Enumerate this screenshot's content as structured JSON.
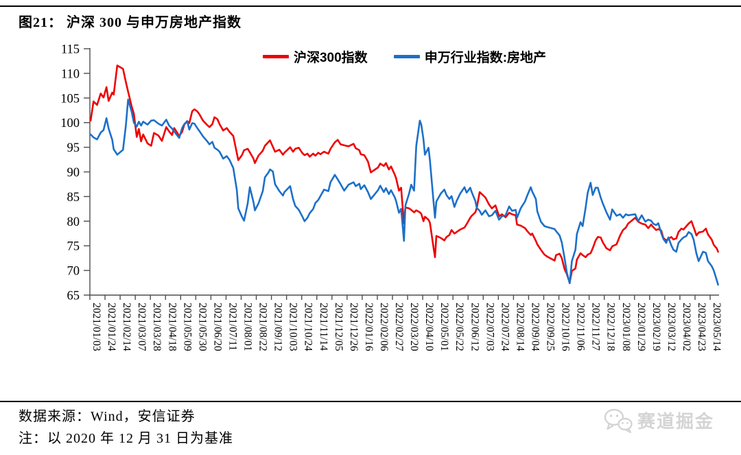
{
  "page": {
    "title": "图21： 沪深 300 与申万房地产指数"
  },
  "legend": [
    {
      "label": "沪深300指数",
      "color": "#ee0000"
    },
    {
      "label": "申万行业指数:房地产",
      "color": "#1c70c8"
    }
  ],
  "footer": {
    "source": "数据来源：Wind，安信证券",
    "note": "注：以 2020 年 12 月 31 日为基准"
  },
  "watermark": {
    "text": "赛道掘金",
    "icon": "wechat-chat-bubbles",
    "color": "#d4d4d4"
  },
  "chart_data": {
    "type": "line",
    "title": "图21： 沪深 300 与申万房地产指数",
    "xlabel": "",
    "ylabel": "",
    "ylim": [
      65,
      115
    ],
    "y_ticks": [
      115,
      110,
      105,
      100,
      95,
      90,
      85,
      80,
      75,
      70,
      65
    ],
    "grid": false,
    "legend_position": "top-center",
    "axis_color": "#4d4d4d",
    "x_start": "2021/01/03",
    "x_tick_labels": [
      "2021/01/03",
      "2021/01/24",
      "2021/02/14",
      "2021/03/07",
      "2021/03/28",
      "2021/04/18",
      "2021/05/09",
      "2021/05/30",
      "2021/06/20",
      "2021/07/11",
      "2021/08/01",
      "2021/08/22",
      "2021/09/12",
      "2021/10/03",
      "2021/10/24",
      "2021/11/14",
      "2021/12/05",
      "2021/12/26",
      "2022/01/16",
      "2022/02/06",
      "2022/02/27",
      "2022/03/20",
      "2022/04/10",
      "2022/05/01",
      "2022/05/22",
      "2022/06/12",
      "2022/07/03",
      "2022/07/24",
      "2022/08/14",
      "2022/09/04",
      "2022/09/25",
      "2022/10/16",
      "2022/11/06",
      "2022/11/27",
      "2022/12/18",
      "2023/01/08",
      "2023/01/29",
      "2023/02/19",
      "2023/03/12",
      "2023/04/02",
      "2023/04/23",
      "2023/05/14"
    ],
    "dates": [
      "2021/01/04",
      "2021/01/08",
      "2021/01/13",
      "2021/01/18",
      "2021/01/22",
      "2021/01/26",
      "2021/01/29",
      "2021/02/03",
      "2021/02/05",
      "2021/02/10",
      "2021/02/18",
      "2021/02/22",
      "2021/02/25",
      "2021/03/02",
      "2021/03/05",
      "2021/03/09",
      "2021/03/12",
      "2021/03/15",
      "2021/03/18",
      "2021/03/24",
      "2021/03/29",
      "2021/04/02",
      "2021/04/08",
      "2021/04/13",
      "2021/04/19",
      "2021/04/23",
      "2021/04/27",
      "2021/04/30",
      "2021/05/07",
      "2021/05/11",
      "2021/05/14",
      "2021/05/18",
      "2021/05/21",
      "2021/05/25",
      "2021/05/28",
      "2021/06/01",
      "2021/06/04",
      "2021/06/09",
      "2021/06/15",
      "2021/06/18",
      "2021/06/22",
      "2021/06/25",
      "2021/06/29",
      "2021/07/02",
      "2021/07/07",
      "2021/07/12",
      "2021/07/16",
      "2021/07/21",
      "2021/07/26",
      "2021/07/28",
      "2021/08/02",
      "2021/08/05",
      "2021/08/10",
      "2021/08/13",
      "2021/08/18",
      "2021/08/20",
      "2021/08/25",
      "2021/08/31",
      "2021/09/03",
      "2021/09/08",
      "2021/09/10",
      "2021/09/14",
      "2021/09/17",
      "2021/09/23",
      "2021/09/28",
      "2021/09/30",
      "2021/10/08",
      "2021/10/12",
      "2021/10/15",
      "2021/10/20",
      "2021/10/25",
      "2021/10/28",
      "2021/11/01",
      "2021/11/04",
      "2021/11/09",
      "2021/11/12",
      "2021/11/16",
      "2021/11/19",
      "2021/11/24",
      "2021/11/30",
      "2021/12/03",
      "2021/12/09",
      "2021/12/13",
      "2021/12/17",
      "2021/12/22",
      "2021/12/28",
      "2022/01/04",
      "2022/01/07",
      "2022/01/12",
      "2022/01/14",
      "2022/01/19",
      "2022/01/24",
      "2022/01/28",
      "2022/02/07",
      "2022/02/10",
      "2022/02/15",
      "2022/02/18",
      "2022/02/22",
      "2022/02/25",
      "2022/03/02",
      "2022/03/04",
      "2022/03/08",
      "2022/03/11",
      "2022/03/15",
      "2022/03/17",
      "2022/03/22",
      "2022/03/25",
      "2022/03/29",
      "2022/04/01",
      "2022/04/06",
      "2022/04/08",
      "2022/04/11",
      "2022/04/13",
      "2022/04/18",
      "2022/04/20",
      "2022/04/25",
      "2022/04/27",
      "2022/04/29",
      "2022/05/05",
      "2022/05/10",
      "2022/05/13",
      "2022/05/17",
      "2022/05/20",
      "2022/05/24",
      "2022/05/27",
      "2022/06/01",
      "2022/06/07",
      "2022/06/10",
      "2022/06/15",
      "2022/06/17",
      "2022/06/22",
      "2022/06/24",
      "2022/06/28",
      "2022/07/01",
      "2022/07/06",
      "2022/07/11",
      "2022/07/15",
      "2022/07/20",
      "2022/07/25",
      "2022/07/29",
      "2022/08/03",
      "2022/08/08",
      "2022/08/12",
      "2022/08/17",
      "2022/08/19",
      "2022/08/24",
      "2022/08/30",
      "2022/09/02",
      "2022/09/07",
      "2022/09/09",
      "2022/09/14",
      "2022/09/16",
      "2022/09/21",
      "2022/09/26",
      "2022/09/30",
      "2022/10/10",
      "2022/10/12",
      "2022/10/17",
      "2022/10/20",
      "2022/10/24",
      "2022/10/27",
      "2022/10/31",
      "2022/11/03",
      "2022/11/08",
      "2022/11/10",
      "2022/11/15",
      "2022/11/18",
      "2022/11/22",
      "2022/11/25",
      "2022/11/29",
      "2022/12/02",
      "2022/12/06",
      "2022/12/09",
      "2022/12/13",
      "2022/12/16",
      "2022/12/21",
      "2022/12/26",
      "2022/12/29",
      "2023/01/04",
      "2023/01/09",
      "2023/01/13",
      "2023/01/17",
      "2023/01/20",
      "2023/01/30",
      "2023/02/03",
      "2023/02/08",
      "2023/02/13",
      "2023/02/17",
      "2023/02/21",
      "2023/02/24",
      "2023/02/28",
      "2023/03/03",
      "2023/03/07",
      "2023/03/10",
      "2023/03/14",
      "2023/03/17",
      "2023/03/21",
      "2023/03/24",
      "2023/03/28",
      "2023/03/31",
      "2023/04/04",
      "2023/04/07",
      "2023/04/11",
      "2023/04/14",
      "2023/04/18",
      "2023/04/21",
      "2023/04/25",
      "2023/04/28",
      "2023/05/04",
      "2023/05/08",
      "2023/05/11",
      "2023/05/16",
      "2023/05/19",
      "2023/05/23",
      "2023/05/25"
    ],
    "series": [
      {
        "name": "沪深300指数",
        "color": "#ee0000",
        "values": [
          100.4,
          104.3,
          103.6,
          105.9,
          105.1,
          107.2,
          104.4,
          106.1,
          105.7,
          111.6,
          110.9,
          108.2,
          106.3,
          103.3,
          101.8,
          97.1,
          98.7,
          96.2,
          97.6,
          95.8,
          95.3,
          97.9,
          97.4,
          96.3,
          99.1,
          98.2,
          97.5,
          98.9,
          97.3,
          98.1,
          99.6,
          100.3,
          99.9,
          102.3,
          102.7,
          102.3,
          101.7,
          100.4,
          99.5,
          99.1,
          99.7,
          101.1,
          100.7,
          99.7,
          98.4,
          98.9,
          98.1,
          97.3,
          93.8,
          92.4,
          93.4,
          94.4,
          94.7,
          94.0,
          92.7,
          91.8,
          93.3,
          94.3,
          95.3,
          96.1,
          96.4,
          95.1,
          94.1,
          94.5,
          93.5,
          93.9,
          95.0,
          94.1,
          94.7,
          94.9,
          93.8,
          93.4,
          93.7,
          93.1,
          93.7,
          93.3,
          93.9,
          93.6,
          94.1,
          93.7,
          94.7,
          96.0,
          96.5,
          95.6,
          95.4,
          95.2,
          95.7,
          94.8,
          94.4,
          93.6,
          93.4,
          92.1,
          89.9,
          90.9,
          91.7,
          91.2,
          91.8,
          90.5,
          91.1,
          89.5,
          88.7,
          86.2,
          86.8,
          79.5,
          82.8,
          82.6,
          82.3,
          81.8,
          82.2,
          81.8,
          81.5,
          80.0,
          80.9,
          80.3,
          79.7,
          74.6,
          72.7,
          77.0,
          76.6,
          76.1,
          76.8,
          77.2,
          78.2,
          77.5,
          77.8,
          78.3,
          78.7,
          79.4,
          80.7,
          81.1,
          81.8,
          82.7,
          85.9,
          85.5,
          84.8,
          83.4,
          82.6,
          83.2,
          81.0,
          81.4,
          80.8,
          81.7,
          81.4,
          81.2,
          79.3,
          79.1,
          78.6,
          78.0,
          77.2,
          77.5,
          76.0,
          75.3,
          74.2,
          73.2,
          72.8,
          72.0,
          73.1,
          73.4,
          72.5,
          70.2,
          69.3,
          67.5,
          69.9,
          70.4,
          72.2,
          73.5,
          73.1,
          72.7,
          73.2,
          73.5,
          74.5,
          76.1,
          76.8,
          76.7,
          75.7,
          74.5,
          74.1,
          74.9,
          75.3,
          77.1,
          78.2,
          78.7,
          79.5,
          80.7,
          79.9,
          79.5,
          79.3,
          78.6,
          79.3,
          78.8,
          78.2,
          78.4,
          78.1,
          76.6,
          76.1,
          76.4,
          76.8,
          76.3,
          76.5,
          77.8,
          78.5,
          78.3,
          79.0,
          79.5,
          80.0,
          78.8,
          77.1,
          77.7,
          77.9,
          78.5,
          77.3,
          76.3,
          75.2,
          74.5,
          73.8
        ]
      },
      {
        "name": "申万行业指数:房地产",
        "color": "#1c70c8",
        "values": [
          97.6,
          97.0,
          96.6,
          98.0,
          98.5,
          100.9,
          98.8,
          96.5,
          94.6,
          93.5,
          94.5,
          99.5,
          104.7,
          102.2,
          100.0,
          99.2,
          100.2,
          99.4,
          100.2,
          99.6,
          100.4,
          100.5,
          99.8,
          99.4,
          100.6,
          99.4,
          98.8,
          98.2,
          96.9,
          98.9,
          99.7,
          100.3,
          98.6,
          99.9,
          99.8,
          98.9,
          98.3,
          97.2,
          96.2,
          95.6,
          96.1,
          94.9,
          94.5,
          94.1,
          92.7,
          93.2,
          92.4,
          90.8,
          86.3,
          82.6,
          80.9,
          80.1,
          83.6,
          86.9,
          83.9,
          82.2,
          83.6,
          86.1,
          88.9,
          89.9,
          90.5,
          90.1,
          87.5,
          86.1,
          85.2,
          85.9,
          87.1,
          84.5,
          83.1,
          82.3,
          80.9,
          80.0,
          80.7,
          81.6,
          82.5,
          83.7,
          84.3,
          85.1,
          86.4,
          86.1,
          87.9,
          89.4,
          88.5,
          87.5,
          86.2,
          87.4,
          87.9,
          87.1,
          87.6,
          86.5,
          87.3,
          85.9,
          84.5,
          86.3,
          87.2,
          85.9,
          86.7,
          85.5,
          86.3,
          84.9,
          84.1,
          81.7,
          82.5,
          76.0,
          83.2,
          85.6,
          87.4,
          86.2,
          95.3,
          100.4,
          99.6,
          96.6,
          93.5,
          94.9,
          92.4,
          83.9,
          80.7,
          84.0,
          85.6,
          86.4,
          85.3,
          84.5,
          85.1,
          82.9,
          84.1,
          85.6,
          86.9,
          85.8,
          86.8,
          85.9,
          84.1,
          82.7,
          82.1,
          81.3,
          82.2,
          81.0,
          81.2,
          82.1,
          80.3,
          81.0,
          81.2,
          83.0,
          82.1,
          82.3,
          80.7,
          82.6,
          84.0,
          85.2,
          86.9,
          86.0,
          84.5,
          82.0,
          79.9,
          79.0,
          78.8,
          78.4,
          78.0,
          77.1,
          75.7,
          72.4,
          69.6,
          67.4,
          71.9,
          74.2,
          77.4,
          79.8,
          79.0,
          82.6,
          85.8,
          87.8,
          85.3,
          86.8,
          86.8,
          84.8,
          83.6,
          81.8,
          80.3,
          82.4,
          81.1,
          81.4,
          80.7,
          81.4,
          81.2,
          81.4,
          80.0,
          81.2,
          79.9,
          80.3,
          80.1,
          79.5,
          79.2,
          79.6,
          77.6,
          76.4,
          75.6,
          76.7,
          75.1,
          74.2,
          73.8,
          75.6,
          76.3,
          76.7,
          77.0,
          77.8,
          77.4,
          76.3,
          73.4,
          71.9,
          73.8,
          73.6,
          71.9,
          70.9,
          70.0,
          68.1,
          67.1
        ]
      }
    ]
  }
}
